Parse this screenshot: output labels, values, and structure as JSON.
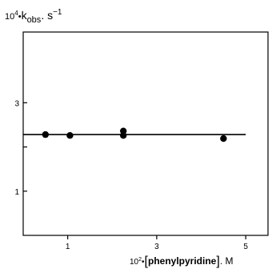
{
  "chart_data": {
    "type": "scatter",
    "ylabel": {
      "prefix": "10",
      "prefix_exp": "4",
      "dot": "•",
      "k": "k",
      "sub": "obs",
      "sep": ". s",
      "exp": "−1"
    },
    "xlabel": {
      "prefix": "10",
      "prefix_exp": "2",
      "dot": "•",
      "bracket_open": "[",
      "name": "phenylpyridine",
      "bracket_close": "]",
      "unit": ". M"
    },
    "xlim": [
      0,
      5.5
    ],
    "ylim": [
      0,
      4.6
    ],
    "x_ticks": [
      1,
      3,
      5
    ],
    "y_ticks": [
      1,
      3
    ],
    "x_tick_labels": [
      "1",
      "3",
      "5"
    ],
    "y_tick_labels": [
      "1",
      "3"
    ],
    "grid": false,
    "series": [
      {
        "points": [
          {
            "x": 0.5,
            "y": 2.28
          },
          {
            "x": 1.05,
            "y": 2.26
          },
          {
            "x": 2.25,
            "y": 2.36
          },
          {
            "x": 2.25,
            "y": 2.26
          },
          {
            "x": 4.5,
            "y": 2.19
          }
        ]
      }
    ],
    "fit_line": {
      "x": [
        0,
        5
      ],
      "y": [
        2.28,
        2.28
      ]
    }
  }
}
